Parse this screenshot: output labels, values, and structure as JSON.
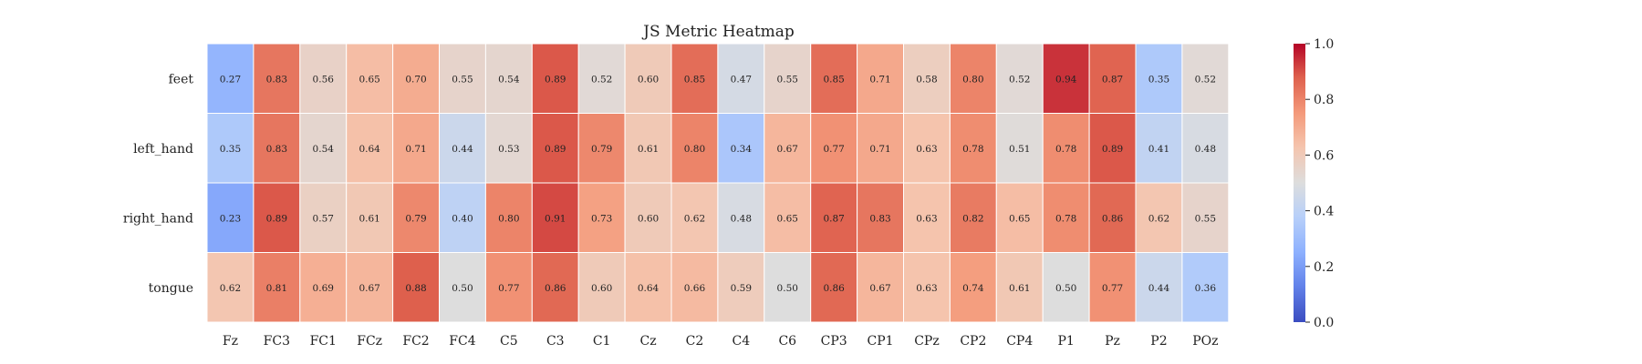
{
  "chart_data": {
    "type": "heatmap",
    "title": "JS Metric Heatmap",
    "rows": [
      "feet",
      "left_hand",
      "right_hand",
      "tongue"
    ],
    "columns": [
      "Fz",
      "FC3",
      "FC1",
      "FCz",
      "FC2",
      "FC4",
      "C5",
      "C3",
      "C1",
      "Cz",
      "C2",
      "C4",
      "C6",
      "CP3",
      "CP1",
      "CPz",
      "CP2",
      "CP4",
      "P1",
      "Pz",
      "P2",
      "POz"
    ],
    "values": [
      [
        0.27,
        0.83,
        0.56,
        0.65,
        0.7,
        0.55,
        0.54,
        0.89,
        0.52,
        0.6,
        0.85,
        0.47,
        0.55,
        0.85,
        0.71,
        0.58,
        0.8,
        0.52,
        0.94,
        0.87,
        0.35,
        0.52
      ],
      [
        0.35,
        0.83,
        0.54,
        0.64,
        0.71,
        0.44,
        0.53,
        0.89,
        0.79,
        0.61,
        0.8,
        0.34,
        0.67,
        0.77,
        0.71,
        0.63,
        0.78,
        0.51,
        0.78,
        0.89,
        0.41,
        0.48
      ],
      [
        0.23,
        0.89,
        0.57,
        0.61,
        0.79,
        0.4,
        0.8,
        0.91,
        0.73,
        0.6,
        0.62,
        0.48,
        0.65,
        0.87,
        0.83,
        0.63,
        0.82,
        0.65,
        0.78,
        0.86,
        0.62,
        0.55
      ],
      [
        0.62,
        0.81,
        0.69,
        0.67,
        0.88,
        0.5,
        0.77,
        0.86,
        0.6,
        0.64,
        0.66,
        0.59,
        0.5,
        0.86,
        0.67,
        0.63,
        0.74,
        0.61,
        0.5,
        0.77,
        0.44,
        0.36
      ]
    ],
    "value_range": [
      0.0,
      1.0
    ],
    "colormap": "coolwarm",
    "colorbar_ticks": [
      "0.0",
      "0.2",
      "0.4",
      "0.6",
      "0.8",
      "1.0"
    ],
    "annotations": true
  }
}
